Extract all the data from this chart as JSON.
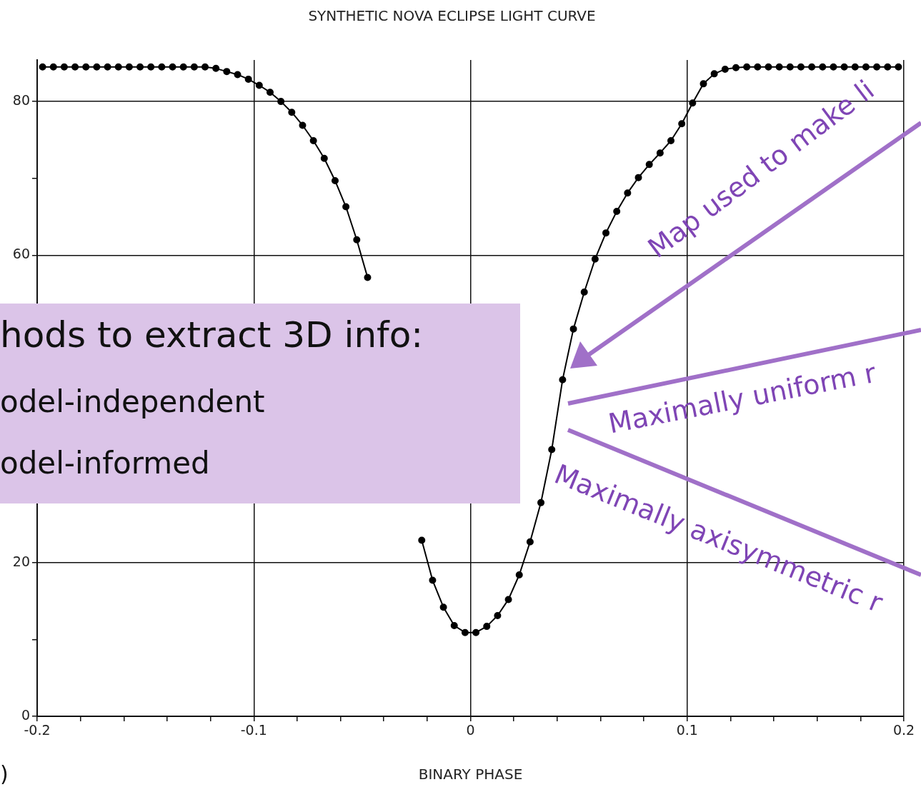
{
  "chart_data": {
    "type": "line",
    "title": "SYNTHETIC NOVA ECLIPSE LIGHT CURVE",
    "xlabel": "BINARY PHASE",
    "x": [
      -0.1975,
      -0.1925,
      -0.1875,
      -0.1825,
      -0.1775,
      -0.1725,
      -0.1675,
      -0.1625,
      -0.1575,
      -0.1525,
      -0.1475,
      -0.1425,
      -0.1375,
      -0.1325,
      -0.1275,
      -0.1225,
      -0.1175,
      -0.1125,
      -0.1075,
      -0.1025,
      -0.0975,
      -0.0925,
      -0.0875,
      -0.0825,
      -0.0775,
      -0.0725,
      -0.0675,
      -0.0625,
      -0.0575,
      -0.0525,
      -0.0475,
      -0.0425,
      -0.0375,
      -0.0325,
      -0.0275,
      -0.0225,
      -0.0175,
      -0.0125,
      -0.0075,
      -0.0025,
      0.0025,
      0.0075,
      0.0125,
      0.0175,
      0.0225,
      0.0275,
      0.0325,
      0.0375,
      0.0425,
      0.0475,
      0.0525,
      0.0575,
      0.0625,
      0.0675,
      0.0725,
      0.0775,
      0.0825,
      0.0875,
      0.0925,
      0.0975,
      0.1025,
      0.1075,
      0.1125,
      0.1175,
      0.1225,
      0.1275,
      0.1325,
      0.1375,
      0.1425,
      0.1475,
      0.1525,
      0.1575,
      0.1625,
      0.1675,
      0.1725,
      0.1775,
      0.1825,
      0.1875,
      0.1925,
      0.1975
    ],
    "series": [
      {
        "color": "#000000",
        "values": [
          84.5,
          84.5,
          84.5,
          84.5,
          84.5,
          84.5,
          84.5,
          84.5,
          84.5,
          84.5,
          84.5,
          84.5,
          84.5,
          84.5,
          84.5,
          84.5,
          84.3,
          83.9,
          83.5,
          82.9,
          82.1,
          81.2,
          80.0,
          78.6,
          76.9,
          74.9,
          72.6,
          69.7,
          66.3,
          62.0,
          57.1,
          null,
          null,
          null,
          null,
          22.9,
          17.7,
          14.2,
          11.8,
          10.9,
          10.9,
          11.7,
          13.1,
          15.2,
          18.4,
          22.7,
          27.8,
          34.7,
          43.8,
          50.4,
          55.2,
          59.5,
          62.9,
          65.7,
          68.1,
          70.1,
          71.8,
          73.3,
          74.9,
          77.1,
          79.8,
          82.3,
          83.6,
          84.2,
          84.4,
          84.5,
          84.5,
          84.5,
          84.5,
          84.5,
          84.5,
          84.5,
          84.5,
          84.5,
          84.5,
          84.5,
          84.5,
          84.5,
          84.5,
          84.5
        ]
      }
    ],
    "xlim": [
      -0.2,
      0.2
    ],
    "ylim": [
      0,
      85.4
    ],
    "xticks": [
      -0.2,
      {
        "value": -0.18,
        "label": null
      },
      {
        "value": -0.16,
        "label": null
      },
      {
        "value": -0.14,
        "label": null
      },
      {
        "value": -0.12,
        "label": null
      },
      -0.1,
      {
        "value": -0.08,
        "label": null
      },
      {
        "value": -0.06,
        "label": null
      },
      {
        "value": -0.04,
        "label": null
      },
      {
        "value": -0.02,
        "label": null
      },
      0,
      {
        "value": 0.02,
        "label": null
      },
      {
        "value": 0.04,
        "label": null
      },
      {
        "value": 0.06,
        "label": null
      },
      {
        "value": 0.08,
        "label": null
      },
      0.1,
      {
        "value": 0.12,
        "label": null
      },
      {
        "value": 0.14,
        "label": null
      },
      {
        "value": 0.16,
        "label": null
      },
      {
        "value": 0.18,
        "label": null
      },
      0.2
    ],
    "yticks": [
      0,
      {
        "value": 10,
        "label": null
      },
      20,
      {
        "value": 30,
        "label": null
      },
      {
        "value": 40,
        "label": null
      },
      {
        "value": 50,
        "label": null
      },
      60,
      {
        "value": 70,
        "label": null
      },
      80
    ],
    "grid": true,
    "marker": "circle",
    "line_style": "solid",
    "annotations": [
      "hods to extract 3D info:",
      "odel-independent",
      "odel-informed",
      "Map used to make li",
      "Maximally uniform r",
      "Maximally axisymmetric r",
      ")"
    ]
  }
}
